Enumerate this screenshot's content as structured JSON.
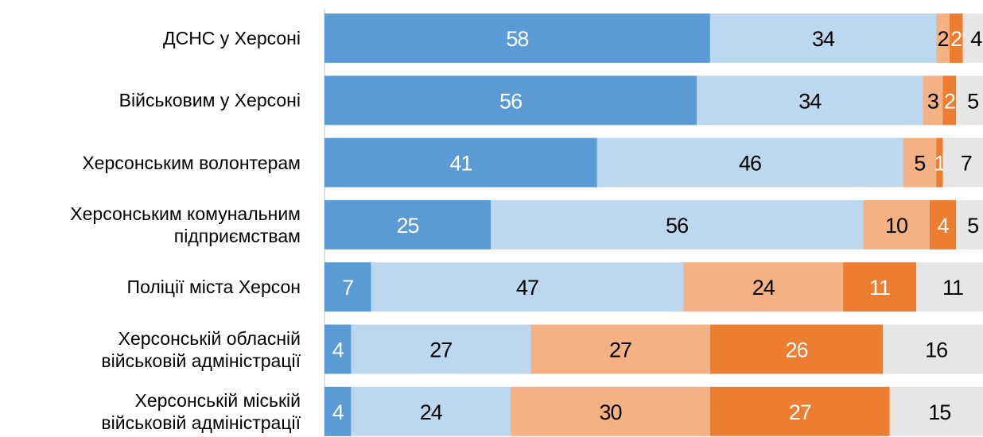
{
  "chart_data": {
    "type": "stacked_bar_horizontal",
    "categories": [
      "ДСНС у Херсоні",
      "Військовим у Херсоні",
      "Херсонським волонтерам",
      "Херсонським комунальним\nпідприємствам",
      "Поліції міста Херсон",
      "Херсонській обласній\nвійськовій адміністрації",
      "Херсонській міській\nвійськовій адміністрації"
    ],
    "series": [
      {
        "color": "#5b9bd5",
        "label_color": "#ffffff",
        "values": [
          58,
          56,
          41,
          25,
          7,
          4,
          4
        ]
      },
      {
        "color": "#bdd7ee",
        "label_color": "#000000",
        "values": [
          34,
          34,
          46,
          56,
          47,
          27,
          24
        ]
      },
      {
        "color": "#f4b183",
        "label_color": "#000000",
        "values": [
          2,
          3,
          5,
          10,
          24,
          27,
          30
        ]
      },
      {
        "color": "#ed7d31",
        "label_color": "#ffffff",
        "values": [
          2,
          2,
          1,
          4,
          11,
          26,
          27
        ]
      },
      {
        "color": "#e7e6e6",
        "label_color": "#000000",
        "values": [
          4,
          5,
          7,
          5,
          11,
          16,
          15
        ]
      }
    ],
    "xlim": [
      0,
      100
    ]
  }
}
